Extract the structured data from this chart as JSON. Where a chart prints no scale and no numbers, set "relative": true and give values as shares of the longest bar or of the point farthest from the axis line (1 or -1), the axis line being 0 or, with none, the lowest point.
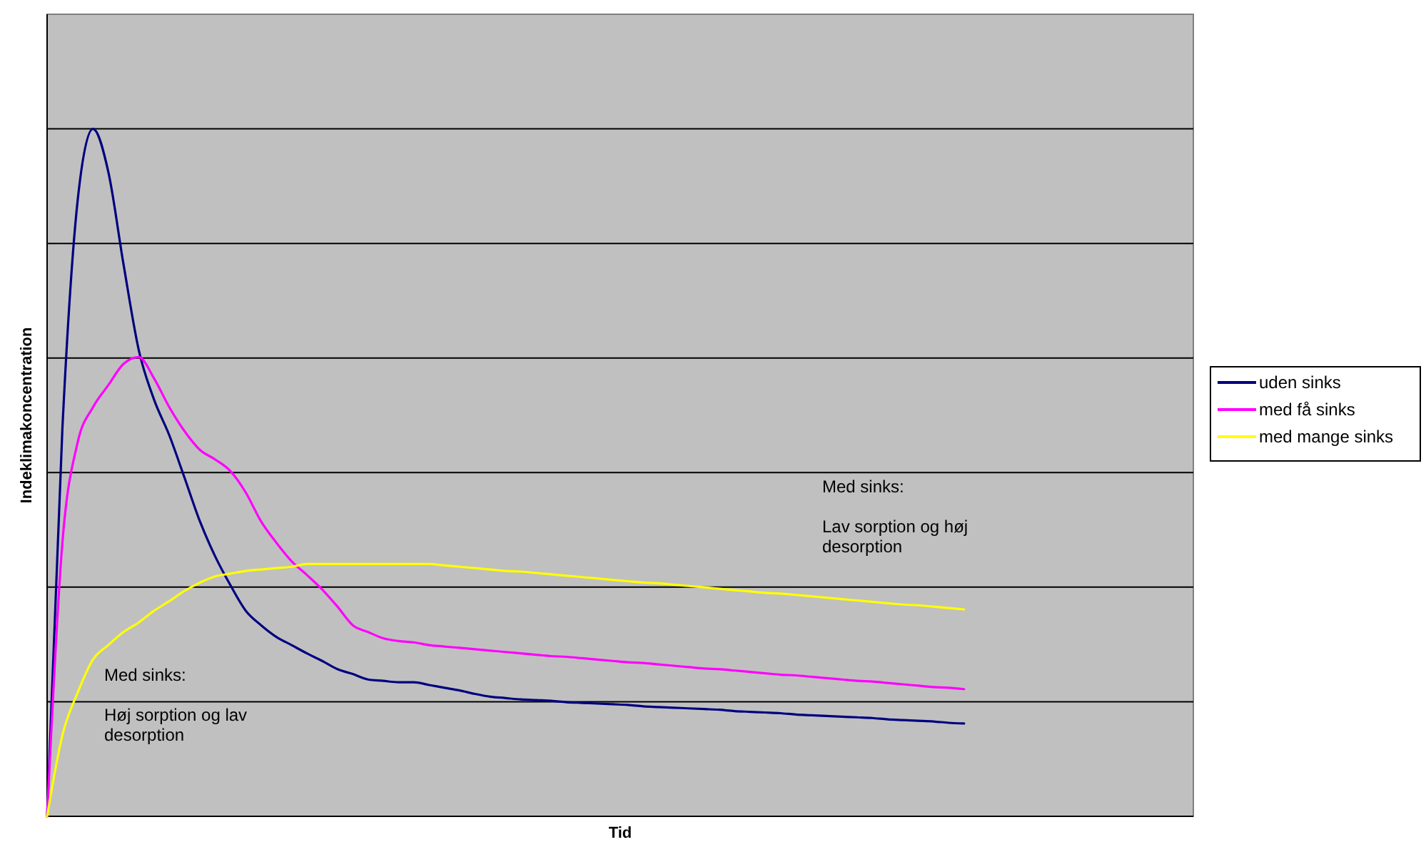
{
  "chart_data": {
    "type": "line",
    "relative": true,
    "xlabel": "Tid",
    "ylabel": "Indeklimakoncentration",
    "grid": "y",
    "legend": "right",
    "marker": "none",
    "line_style": "solid",
    "annotations": [
      "Med sinks:\n\nHøj sorption og lav\ndesorption",
      "Med sinks:\n\nLav sorption og høj\ndesorption"
    ],
    "categories": [
      null,
      null,
      null,
      null,
      null,
      null,
      null,
      null,
      null,
      null,
      null,
      null,
      null,
      null,
      null,
      null,
      null,
      null,
      null,
      null,
      null,
      null,
      null,
      null,
      null,
      null,
      null,
      null,
      null,
      null,
      null,
      null,
      null,
      null,
      null,
      null,
      null,
      null,
      null,
      null,
      null,
      null,
      null,
      null,
      null,
      null,
      null,
      null,
      null,
      null,
      null,
      null,
      null,
      null,
      null,
      null,
      null,
      null,
      null,
      null,
      null,
      null,
      null,
      null,
      null,
      null,
      null,
      null,
      null,
      null,
      null,
      null,
      null,
      null,
      null,
      null
    ],
    "series": [
      {
        "name": "uden sinks",
        "color": "#000080",
        "values": [
          0,
          0.564,
          0.896,
          1,
          0.938,
          0.803,
          0.678,
          0.606,
          0.554,
          0.492,
          0.429,
          0.378,
          0.336,
          0.299,
          0.278,
          0.261,
          0.249,
          0.237,
          0.226,
          0.214,
          0.207,
          0.199,
          0.197,
          0.195,
          0.195,
          0.191,
          0.187,
          0.183,
          0.178,
          0.174,
          0.172,
          0.17,
          0.169,
          0.168,
          0.166,
          0.165,
          0.164,
          0.163,
          0.162,
          0.16,
          0.159,
          0.158,
          0.157,
          0.156,
          0.155,
          0.153,
          0.152,
          0.151,
          0.15,
          0.148,
          0.147,
          0.146,
          0.145,
          0.144,
          0.143,
          0.141,
          0.14,
          0.139,
          0.138,
          0.136,
          0.135,
          null,
          null,
          null,
          null,
          null,
          null,
          null,
          null,
          null,
          null,
          null,
          null,
          null,
          null,
          null
        ]
      },
      {
        "name": "med få sinks",
        "color": "#ff00ff",
        "values": [
          0,
          0.398,
          0.544,
          0.595,
          0.627,
          0.658,
          0.668,
          0.637,
          0.595,
          0.56,
          0.533,
          0.519,
          0.502,
          0.471,
          0.429,
          0.398,
          0.371,
          0.351,
          0.33,
          0.305,
          0.278,
          0.268,
          0.259,
          0.255,
          0.253,
          0.249,
          0.247,
          0.245,
          0.243,
          0.241,
          0.239,
          0.237,
          0.235,
          0.233,
          0.232,
          0.23,
          0.228,
          0.226,
          0.224,
          0.223,
          0.221,
          0.219,
          0.217,
          0.215,
          0.214,
          0.212,
          0.21,
          0.208,
          0.206,
          0.205,
          0.203,
          0.201,
          0.199,
          0.197,
          0.196,
          0.194,
          0.192,
          0.19,
          0.188,
          0.187,
          0.185,
          null,
          null,
          null,
          null,
          null,
          null,
          null,
          null,
          null,
          null,
          null,
          null,
          null,
          null,
          null
        ]
      },
      {
        "name": "med mange sinks",
        "color": "#ffff00",
        "values": [
          0,
          0.118,
          0.18,
          0.228,
          0.249,
          0.268,
          0.282,
          0.299,
          0.313,
          0.328,
          0.34,
          0.349,
          0.353,
          0.357,
          0.359,
          0.361,
          0.363,
          0.367,
          0.367,
          0.367,
          0.367,
          0.367,
          0.367,
          0.367,
          0.367,
          0.367,
          0.365,
          0.363,
          0.361,
          0.359,
          0.357,
          0.356,
          0.354,
          0.352,
          0.35,
          0.348,
          0.346,
          0.344,
          0.342,
          0.34,
          0.339,
          0.337,
          0.335,
          0.333,
          0.331,
          0.329,
          0.327,
          0.325,
          0.324,
          0.322,
          0.32,
          0.318,
          0.316,
          0.314,
          0.312,
          0.31,
          0.308,
          0.307,
          0.305,
          0.303,
          0.301,
          null,
          null,
          null,
          null,
          null,
          null,
          null,
          null,
          null,
          null,
          null,
          null,
          null,
          null,
          null
        ]
      }
    ]
  }
}
